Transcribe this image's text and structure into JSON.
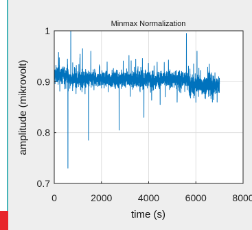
{
  "chart_data": {
    "type": "line",
    "title": "Minmax Normalization",
    "xlabel": "time (s)",
    "ylabel": "amplitude (mikrovolt)",
    "xlim": [
      0,
      8000
    ],
    "ylim": [
      0.7,
      1.0
    ],
    "xticks": [
      0,
      2000,
      4000,
      6000,
      8000
    ],
    "xtick_labels": [
      "0",
      "2000",
      "4000",
      "6000",
      "8000"
    ],
    "yticks": [
      0.7,
      0.8,
      0.9,
      1.0
    ],
    "ytick_labels": [
      "0.7",
      "0.8",
      "0.9",
      "1"
    ],
    "grid": true,
    "line_color": "#0072bd",
    "series": [
      {
        "name": "",
        "x_range": [
          0,
          7000
        ],
        "baseline": 0.905,
        "noise_amplitude": 0.035,
        "spikes": [
          {
            "x": 580,
            "y": 0.73
          },
          {
            "x": 700,
            "y": 1.0
          },
          {
            "x": 1200,
            "y": 0.965
          },
          {
            "x": 1450,
            "y": 0.785
          },
          {
            "x": 1550,
            "y": 0.96
          },
          {
            "x": 2750,
            "y": 0.805
          },
          {
            "x": 3800,
            "y": 0.83
          },
          {
            "x": 5600,
            "y": 0.995
          },
          {
            "x": 5750,
            "y": 0.925
          },
          {
            "x": 6050,
            "y": 0.96
          },
          {
            "x": 6700,
            "y": 0.86
          },
          {
            "x": 6900,
            "y": 0.86
          }
        ]
      }
    ]
  }
}
